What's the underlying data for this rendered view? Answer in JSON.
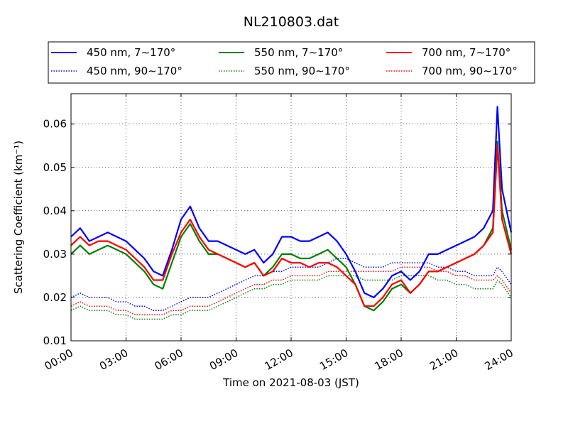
{
  "chart_data": {
    "type": "line",
    "title": "NL210803.dat",
    "xlabel": "Time on 2021-08-03 (JST)",
    "ylabel": "Scattering Coefficient (km⁻¹)",
    "xlim": [
      "00:00",
      "24:00"
    ],
    "ylim": [
      0.01,
      0.067
    ],
    "x_ticks": [
      "00:00",
      "03:00",
      "06:00",
      "09:00",
      "12:00",
      "15:00",
      "18:00",
      "21:00",
      "24:00"
    ],
    "y_ticks": [
      "0.01",
      "0.02",
      "0.03",
      "0.04",
      "0.05",
      "0.06"
    ],
    "grid": true,
    "legend_position": "top, outside plot (2 rows, 3 columns)",
    "x_hours": [
      0,
      0.5,
      1,
      1.5,
      2,
      2.5,
      3,
      3.5,
      4,
      4.5,
      5,
      5.5,
      6,
      6.5,
      7,
      7.5,
      8,
      8.5,
      9,
      9.5,
      10,
      10.5,
      11,
      11.5,
      12,
      12.5,
      13,
      13.5,
      14,
      14.5,
      15,
      15.5,
      16,
      16.5,
      17,
      17.5,
      18,
      18.5,
      19,
      19.5,
      20,
      20.5,
      21,
      21.5,
      22,
      22.5,
      23,
      23.25,
      23.5,
      24
    ],
    "series": [
      {
        "name": "450 nm, 7∼170°",
        "color": "#0000ff",
        "style": "solid",
        "values": [
          0.034,
          0.036,
          0.033,
          0.034,
          0.035,
          0.034,
          0.033,
          0.031,
          0.029,
          0.026,
          0.025,
          0.031,
          0.038,
          0.041,
          0.036,
          0.033,
          0.033,
          0.032,
          0.031,
          0.03,
          0.031,
          0.028,
          0.03,
          0.034,
          0.034,
          0.033,
          0.033,
          0.034,
          0.035,
          0.033,
          0.03,
          0.026,
          0.021,
          0.02,
          0.022,
          0.025,
          0.026,
          0.024,
          0.026,
          0.03,
          0.03,
          0.031,
          0.032,
          0.033,
          0.034,
          0.036,
          0.04,
          0.064,
          0.045,
          0.035
        ]
      },
      {
        "name": "450 nm, 90∼170°",
        "color": "#0000ff",
        "style": "dotted",
        "values": [
          0.02,
          0.021,
          0.02,
          0.02,
          0.02,
          0.019,
          0.019,
          0.018,
          0.018,
          0.017,
          0.017,
          0.018,
          0.019,
          0.02,
          0.02,
          0.02,
          0.021,
          0.022,
          0.023,
          0.024,
          0.025,
          0.025,
          0.026,
          0.026,
          0.027,
          0.027,
          0.027,
          0.027,
          0.028,
          0.029,
          0.029,
          0.028,
          0.027,
          0.027,
          0.027,
          0.028,
          0.028,
          0.028,
          0.028,
          0.028,
          0.027,
          0.027,
          0.026,
          0.026,
          0.025,
          0.025,
          0.025,
          0.027,
          0.026,
          0.023
        ]
      },
      {
        "name": "550 nm, 7∼170°",
        "color": "#008000",
        "style": "solid",
        "values": [
          0.03,
          0.032,
          0.03,
          0.031,
          0.032,
          0.031,
          0.03,
          0.028,
          0.026,
          0.023,
          0.022,
          0.028,
          0.034,
          0.037,
          0.033,
          0.03,
          0.03,
          0.029,
          0.028,
          0.027,
          0.028,
          0.025,
          0.027,
          0.03,
          0.03,
          0.029,
          0.029,
          0.03,
          0.031,
          0.029,
          0.027,
          0.023,
          0.018,
          0.017,
          0.019,
          0.022,
          0.023,
          0.021,
          0.023,
          0.026,
          0.026,
          0.027,
          0.028,
          0.029,
          0.03,
          0.032,
          0.036,
          0.056,
          0.04,
          0.031
        ]
      },
      {
        "name": "550 nm, 90∼170°",
        "color": "#008000",
        "style": "dotted",
        "values": [
          0.017,
          0.018,
          0.017,
          0.017,
          0.017,
          0.016,
          0.016,
          0.015,
          0.015,
          0.015,
          0.015,
          0.016,
          0.016,
          0.017,
          0.017,
          0.017,
          0.018,
          0.019,
          0.02,
          0.021,
          0.022,
          0.022,
          0.023,
          0.023,
          0.024,
          0.024,
          0.024,
          0.024,
          0.025,
          0.025,
          0.025,
          0.025,
          0.024,
          0.024,
          0.024,
          0.024,
          0.025,
          0.025,
          0.025,
          0.025,
          0.024,
          0.024,
          0.023,
          0.023,
          0.022,
          0.022,
          0.022,
          0.024,
          0.023,
          0.02
        ]
      },
      {
        "name": "700 nm, 7∼170°",
        "color": "#ff0000",
        "style": "solid",
        "values": [
          0.032,
          0.034,
          0.032,
          0.033,
          0.033,
          0.032,
          0.031,
          0.029,
          0.027,
          0.024,
          0.024,
          0.03,
          0.035,
          0.038,
          0.034,
          0.031,
          0.03,
          0.029,
          0.028,
          0.027,
          0.028,
          0.025,
          0.026,
          0.029,
          0.028,
          0.028,
          0.027,
          0.028,
          0.028,
          0.027,
          0.025,
          0.023,
          0.018,
          0.018,
          0.02,
          0.023,
          0.024,
          0.021,
          0.023,
          0.026,
          0.026,
          0.027,
          0.028,
          0.029,
          0.03,
          0.032,
          0.035,
          0.055,
          0.038,
          0.03
        ]
      },
      {
        "name": "700 nm, 90∼170°",
        "color": "#ff0000",
        "style": "dotted",
        "values": [
          0.018,
          0.019,
          0.018,
          0.018,
          0.018,
          0.017,
          0.017,
          0.016,
          0.016,
          0.016,
          0.016,
          0.017,
          0.017,
          0.018,
          0.018,
          0.018,
          0.019,
          0.02,
          0.021,
          0.022,
          0.023,
          0.023,
          0.024,
          0.024,
          0.025,
          0.025,
          0.025,
          0.025,
          0.026,
          0.026,
          0.026,
          0.026,
          0.026,
          0.026,
          0.026,
          0.026,
          0.027,
          0.027,
          0.027,
          0.027,
          0.026,
          0.026,
          0.025,
          0.025,
          0.024,
          0.024,
          0.024,
          0.025,
          0.024,
          0.021
        ]
      }
    ]
  }
}
